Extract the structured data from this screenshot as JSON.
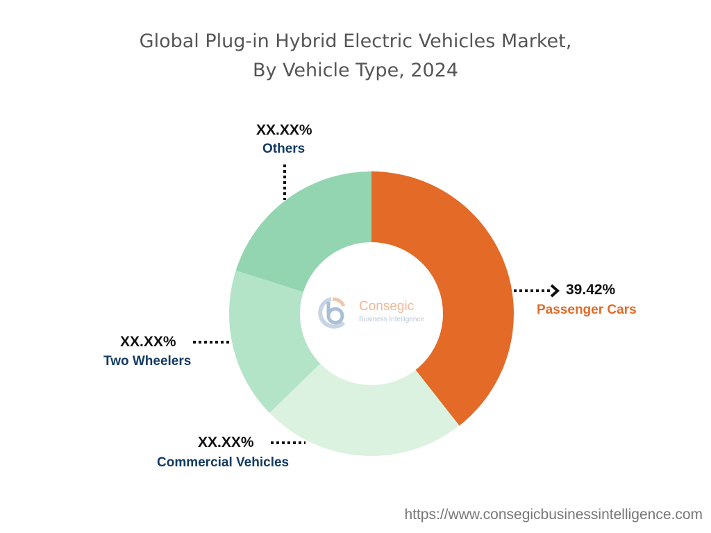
{
  "chart_data": {
    "type": "pie",
    "donut": true,
    "title": "Global Plug-in Hybrid Electric Vehicles Market,",
    "subtitle": "By Vehicle Type, 2024",
    "categories": [
      "Passenger Cars",
      "Commercial Vehicles",
      "Two Wheelers",
      "Others"
    ],
    "values": [
      39.42,
      23.3,
      17.2,
      20.1
    ],
    "labels": [
      "39.42%",
      "XX.XX%",
      "XX.XX%",
      "XX.XX%"
    ],
    "colors": [
      "#E36A27",
      "#DAF2DF",
      "#B3E4C8",
      "#93D5B1"
    ],
    "label_colors": [
      "#E36A27",
      "#123A63",
      "#123A63",
      "#123A63"
    ],
    "start": "top",
    "direction": "clockwise"
  },
  "logo": {
    "name": "Consegic",
    "tagline": "Business Intelligence"
  },
  "footer": {
    "url": "https://www.consegicbusinessintelligence.com"
  }
}
